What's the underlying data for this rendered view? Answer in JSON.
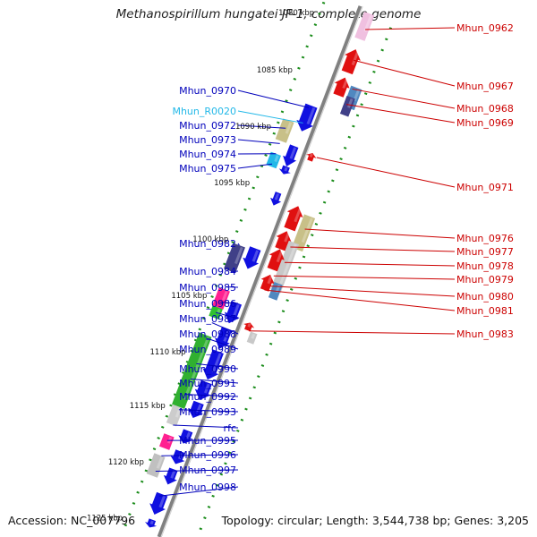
{
  "title": "Methanospirillum hungatei JF-1, complete genome",
  "footer": {
    "accession": "Accession: NC_007796",
    "summary": "Topology: circular; Length: 3,544,738 bp; Genes: 3,205"
  },
  "colors": {
    "forward_gene": "#1010e0",
    "reverse_gene": "#e01010",
    "forward_label": "#0000bb",
    "reverse_label": "#cc0000",
    "rna_label": "#22b8e8",
    "backbone": "#808080",
    "tick_green": "#1a8c1a"
  },
  "scale_labels": [
    "1080 kbp",
    "1085 kbp",
    "1090 kbp",
    "1095 kbp",
    "1100 kbp",
    "1105 kbp",
    "1110 kbp",
    "1115 kbp",
    "1120 kbp",
    "1125 kbp"
  ],
  "forward_labels": [
    {
      "text": "Mhun_0970",
      "color": "forward"
    },
    {
      "text": "Mhun_R0020",
      "color": "rna"
    },
    {
      "text": "Mhun_0972",
      "color": "forward"
    },
    {
      "text": "Mhun_0973",
      "color": "forward"
    },
    {
      "text": "Mhun_0974",
      "color": "forward"
    },
    {
      "text": "Mhun_0975",
      "color": "forward"
    },
    {
      "text": "Mhun_0982",
      "color": "forward"
    },
    {
      "text": "Mhun_0984",
      "color": "forward"
    },
    {
      "text": "Mhun_0985",
      "color": "forward"
    },
    {
      "text": "Mhun_0986",
      "color": "forward"
    },
    {
      "text": "Mhun_0987",
      "color": "forward"
    },
    {
      "text": "Mhun_0988",
      "color": "forward"
    },
    {
      "text": "Mhun_0989",
      "color": "forward"
    },
    {
      "text": "Mhun_0990",
      "color": "forward"
    },
    {
      "text": "Mhun_0991",
      "color": "forward"
    },
    {
      "text": "Mhun_0992",
      "color": "forward"
    },
    {
      "text": "Mhun_0993",
      "color": "forward"
    },
    {
      "text": "rfc",
      "color": "forward"
    },
    {
      "text": "Mhun_0995",
      "color": "forward"
    },
    {
      "text": "Mhun_0996",
      "color": "forward"
    },
    {
      "text": "Mhun_0997",
      "color": "forward"
    },
    {
      "text": "Mhun_0998",
      "color": "forward"
    }
  ],
  "reverse_labels": [
    {
      "text": "Mhun_0962"
    },
    {
      "text": "Mhun_0967"
    },
    {
      "text": "Mhun_0968"
    },
    {
      "text": "Mhun_0969"
    },
    {
      "text": "Mhun_0971"
    },
    {
      "text": "Mhun_0976"
    },
    {
      "text": "Mhun_0977"
    },
    {
      "text": "Mhun_0978"
    },
    {
      "text": "Mhun_0979"
    },
    {
      "text": "Mhun_0980"
    },
    {
      "text": "Mhun_0981"
    },
    {
      "text": "Mhun_0983"
    }
  ]
}
